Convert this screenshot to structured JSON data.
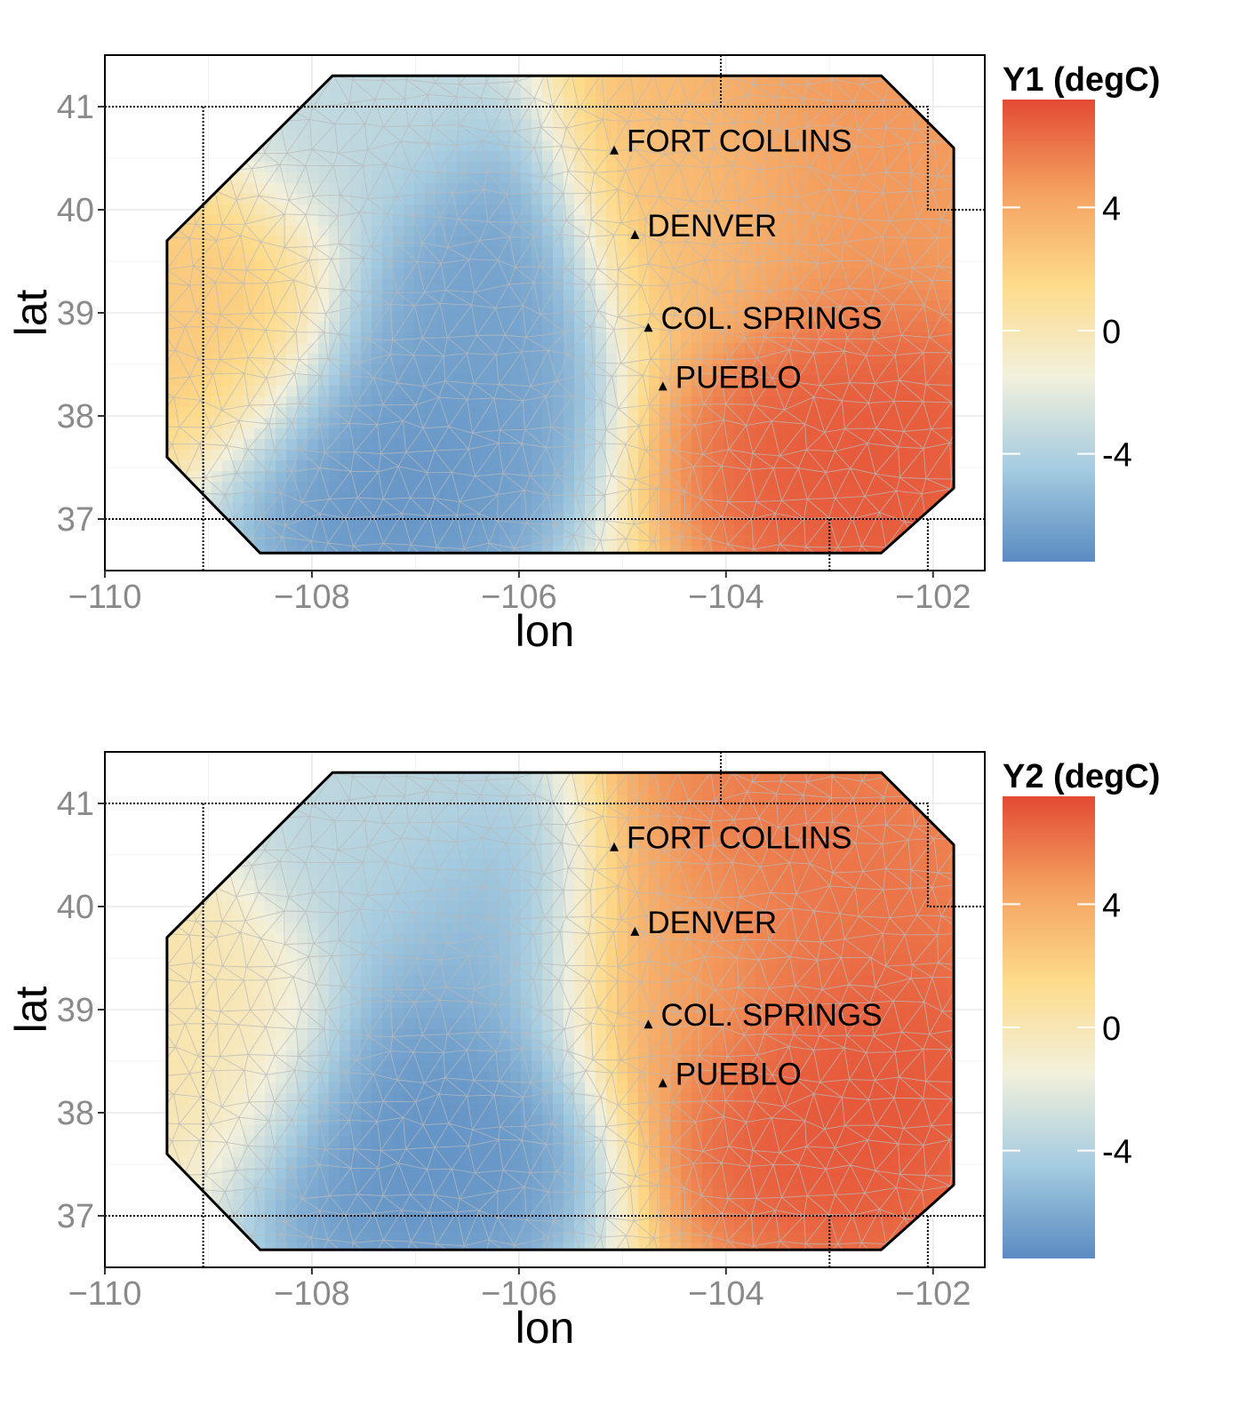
{
  "chart_data": [
    {
      "type": "heatmap",
      "xlabel": "lon",
      "ylabel": "lat",
      "xlim": [
        -110,
        -101.5
      ],
      "ylim": [
        36.5,
        41.5
      ],
      "x_ticks": [
        -110,
        -108,
        -106,
        -104,
        -102
      ],
      "y_ticks": [
        37,
        38,
        39,
        40,
        41
      ],
      "grid": true,
      "legend": {
        "title": "Y1 (degC)",
        "position": "right",
        "range": [
          -7.5,
          7.5
        ],
        "ticks": [
          4,
          0,
          -4
        ],
        "colors": [
          "#e34a33",
          "#f4a160",
          "#fddb8a",
          "#f2f0dc",
          "#a4cbe0",
          "#5a8bc2"
        ]
      },
      "cities": [
        {
          "name": "FORT COLLINS",
          "lon": -105.08,
          "lat": 40.58
        },
        {
          "name": "DENVER",
          "lon": -104.88,
          "lat": 39.76
        },
        {
          "name": "COL. SPRINGS",
          "lon": -104.75,
          "lat": 38.86
        },
        {
          "name": "PUEBLO",
          "lon": -104.61,
          "lat": 38.29
        }
      ],
      "region_outline": [
        [
          -109.4,
          37.6
        ],
        [
          -108.5,
          36.67
        ],
        [
          -102.5,
          36.67
        ],
        [
          -101.8,
          37.3
        ],
        [
          -101.8,
          40.6
        ],
        [
          -102.5,
          41.3
        ],
        [
          -107.8,
          41.3
        ],
        [
          -109.4,
          39.7
        ]
      ],
      "state_borders": [
        [
          [
            -110,
            41
          ],
          [
            -102.05,
            41
          ],
          [
            -102.05,
            40
          ],
          [
            -101.5,
            40
          ]
        ],
        [
          [
            -110,
            37
          ],
          [
            -101.5,
            37
          ]
        ],
        [
          [
            -109.05,
            36.5
          ],
          [
            -109.05,
            41
          ]
        ],
        [
          [
            -104.05,
            41
          ],
          [
            -104.05,
            41.5
          ]
        ],
        [
          [
            -103,
            36.5
          ],
          [
            -103,
            37
          ]
        ],
        [
          [
            -102.05,
            36.5
          ],
          [
            -102.05,
            37
          ]
        ]
      ],
      "field_centers": [
        {
          "lon": -107.2,
          "lat": 37.6,
          "value": -7.3,
          "spread": 1.1
        },
        {
          "lon": -106.3,
          "lat": 39.6,
          "value": -6.8,
          "spread": 0.9
        },
        {
          "lon": -106.8,
          "lat": 38.6,
          "value": -6.5,
          "spread": 0.9
        },
        {
          "lon": -107.5,
          "lat": 40.7,
          "value": -3.6,
          "spread": 1.0
        },
        {
          "lon": -108.8,
          "lat": 39.0,
          "value": 2.6,
          "spread": 1.0
        },
        {
          "lon": -102.6,
          "lat": 37.6,
          "value": 7.2,
          "spread": 1.2
        },
        {
          "lon": -102.8,
          "lat": 40.5,
          "value": 5.0,
          "spread": 1.3
        },
        {
          "lon": -104.4,
          "lat": 40.2,
          "value": 3.0,
          "spread": 1.0
        }
      ]
    },
    {
      "type": "heatmap",
      "xlabel": "lon",
      "ylabel": "lat",
      "xlim": [
        -110,
        -101.5
      ],
      "ylim": [
        36.5,
        41.5
      ],
      "x_ticks": [
        -110,
        -108,
        -106,
        -104,
        -102
      ],
      "y_ticks": [
        37,
        38,
        39,
        40,
        41
      ],
      "grid": true,
      "legend": {
        "title": "Y2 (degC)",
        "position": "right",
        "range": [
          -7.5,
          7.5
        ],
        "ticks": [
          4,
          0,
          -4
        ],
        "colors": [
          "#e34a33",
          "#f4a160",
          "#fddb8a",
          "#f2f0dc",
          "#a4cbe0",
          "#5a8bc2"
        ]
      },
      "cities": [
        {
          "name": "FORT COLLINS",
          "lon": -105.08,
          "lat": 40.58
        },
        {
          "name": "DENVER",
          "lon": -104.88,
          "lat": 39.76
        },
        {
          "name": "COL. SPRINGS",
          "lon": -104.75,
          "lat": 38.86
        },
        {
          "name": "PUEBLO",
          "lon": -104.61,
          "lat": 38.29
        }
      ],
      "region_outline": [
        [
          -109.4,
          37.6
        ],
        [
          -108.5,
          36.67
        ],
        [
          -102.5,
          36.67
        ],
        [
          -101.8,
          37.3
        ],
        [
          -101.8,
          40.6
        ],
        [
          -102.5,
          41.3
        ],
        [
          -107.8,
          41.3
        ],
        [
          -109.4,
          39.7
        ]
      ],
      "state_borders": [
        [
          [
            -110,
            41
          ],
          [
            -102.05,
            41
          ],
          [
            -102.05,
            40
          ],
          [
            -101.5,
            40
          ]
        ],
        [
          [
            -110,
            37
          ],
          [
            -101.5,
            37
          ]
        ],
        [
          [
            -109.05,
            36.5
          ],
          [
            -109.05,
            41
          ]
        ],
        [
          [
            -104.05,
            41
          ],
          [
            -104.05,
            41.5
          ]
        ],
        [
          [
            -103,
            36.5
          ],
          [
            -103,
            37
          ]
        ],
        [
          [
            -102.05,
            36.5
          ],
          [
            -102.05,
            37
          ]
        ]
      ],
      "field_centers": [
        {
          "lon": -107.0,
          "lat": 37.9,
          "value": -7.4,
          "spread": 1.2
        },
        {
          "lon": -106.3,
          "lat": 39.7,
          "value": -5.8,
          "spread": 1.0
        },
        {
          "lon": -107.3,
          "lat": 40.6,
          "value": -3.8,
          "spread": 1.0
        },
        {
          "lon": -108.9,
          "lat": 38.8,
          "value": 0.3,
          "spread": 1.0
        },
        {
          "lon": -102.8,
          "lat": 38.2,
          "value": 7.3,
          "spread": 1.3
        },
        {
          "lon": -103.2,
          "lat": 40.4,
          "value": 6.2,
          "spread": 1.3
        },
        {
          "lon": -104.5,
          "lat": 39.5,
          "value": 4.2,
          "spread": 1.0
        }
      ]
    }
  ]
}
